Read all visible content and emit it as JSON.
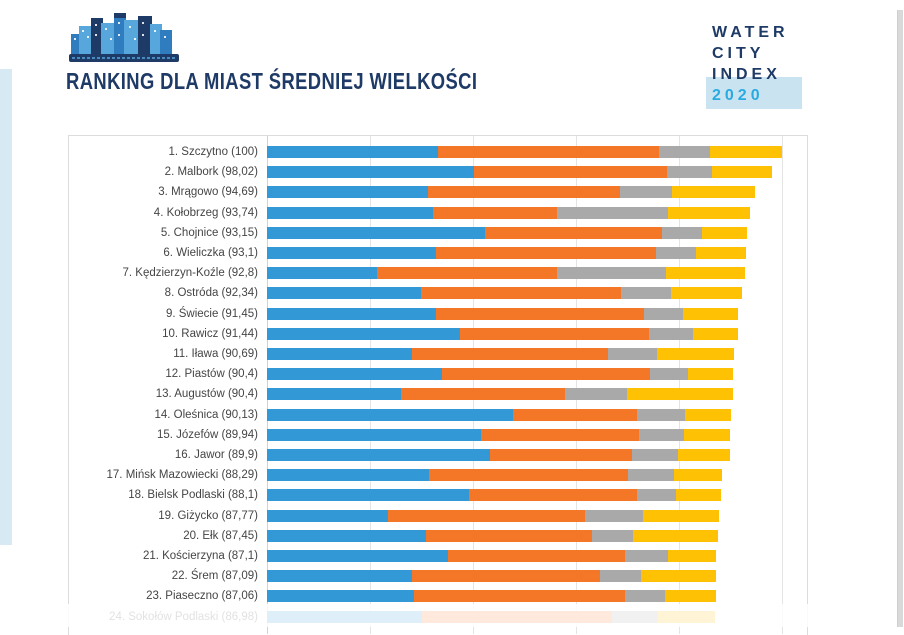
{
  "header": {
    "title": "RANKING DLA MIAST ŚREDNIEJ WIELKOŚCI",
    "brand": {
      "line1": "WATER",
      "line2": "CITY",
      "line3": "INDEX",
      "year": "2020"
    }
  },
  "colors": {
    "navy": "#1e3a66",
    "brand_cyan": "#29abe2",
    "brand_band": "#c9e3f1",
    "edge_accent": "#d7eaf3",
    "bar_blue": "#3399d6",
    "bar_orange": "#f47728",
    "bar_gray": "#a9a9a9",
    "bar_yellow": "#ffc103",
    "label_text": "#454545"
  },
  "chart_data": {
    "type": "bar",
    "orientation": "horizontal",
    "stacked": true,
    "title": "Ranking dla miast średniej wielkości",
    "xlabel": "",
    "ylabel": "",
    "x_axis": {
      "min": 0,
      "max": 100,
      "gridline_step": 20,
      "grid": true,
      "ticks_visible": false
    },
    "legend": "none",
    "segment_names": [
      "blue",
      "orange",
      "gray",
      "yellow"
    ],
    "segment_colors": [
      "#3399d6",
      "#f47728",
      "#a9a9a9",
      "#ffc103"
    ],
    "rows": [
      {
        "label": "1. Szczytno (100)",
        "score": 100,
        "segments": [
          33.2,
          43.0,
          9.9,
          13.9
        ]
      },
      {
        "label": "2. Malbork (98,02)",
        "score": 98.02,
        "segments": [
          40.2,
          37.4,
          8.9,
          11.5
        ]
      },
      {
        "label": "3. Mrągowo (94,69)",
        "score": 94.69,
        "segments": [
          31.3,
          37.2,
          10.1,
          16.1
        ]
      },
      {
        "label": "4. Kołobrzeg (93,74)",
        "score": 93.74,
        "segments": [
          32.2,
          24.2,
          21.5,
          15.8
        ]
      },
      {
        "label": "5. Chojnice (93,15)",
        "score": 93.15,
        "segments": [
          42.3,
          34.4,
          7.8,
          8.7
        ]
      },
      {
        "label": "6. Wieliczka (93,1)",
        "score": 93.1,
        "segments": [
          32.8,
          42.8,
          7.8,
          9.7
        ]
      },
      {
        "label": "7. Kędzierzyn-Koźle (92,8)",
        "score": 92.8,
        "segments": [
          21.4,
          34.9,
          21.2,
          15.3
        ]
      },
      {
        "label": "8. Ostróda (92,34)",
        "score": 92.34,
        "segments": [
          29.9,
          38.8,
          9.7,
          13.9
        ]
      },
      {
        "label": "9. Świecie (91,45)",
        "score": 91.45,
        "segments": [
          32.8,
          40.4,
          7.6,
          10.7
        ]
      },
      {
        "label": "10. Rawicz (91,44)",
        "score": 91.44,
        "segments": [
          37.5,
          36.6,
          8.7,
          8.6
        ]
      },
      {
        "label": "11. Iława (90,69)",
        "score": 90.69,
        "segments": [
          28.2,
          38.0,
          9.5,
          15.0
        ]
      },
      {
        "label": "12. Piastów (90,4)",
        "score": 90.4,
        "segments": [
          34.0,
          40.3,
          7.4,
          8.7
        ]
      },
      {
        "label": "13. Augustów (90,4)",
        "score": 90.4,
        "segments": [
          26.0,
          31.8,
          12.2,
          20.4
        ]
      },
      {
        "label": "14. Oleśnica (90,13)",
        "score": 90.13,
        "segments": [
          47.8,
          24.1,
          9.3,
          8.9
        ]
      },
      {
        "label": "15. Józefów (89,94)",
        "score": 89.94,
        "segments": [
          41.5,
          30.8,
          8.7,
          8.9
        ]
      },
      {
        "label": "16. Jawor (89,9)",
        "score": 89.9,
        "segments": [
          43.3,
          27.6,
          8.9,
          10.1
        ]
      },
      {
        "label": "17. Mińsk Mazowiecki (88,29)",
        "score": 88.29,
        "segments": [
          31.4,
          38.7,
          8.9,
          9.3
        ]
      },
      {
        "label": "18. Bielsk Podlaski (88,1)",
        "score": 88.1,
        "segments": [
          39.2,
          32.6,
          7.6,
          8.7
        ]
      },
      {
        "label": "19. Giżycko (87,77)",
        "score": 87.77,
        "segments": [
          23.5,
          38.2,
          11.3,
          14.8
        ]
      },
      {
        "label": "20. Ełk (87,45)",
        "score": 87.45,
        "segments": [
          30.9,
          32.3,
          7.8,
          16.5
        ]
      },
      {
        "label": "21. Kościerzyna (87,1)",
        "score": 87.1,
        "segments": [
          35.1,
          34.4,
          8.3,
          9.3
        ]
      },
      {
        "label": "22. Śrem (87,09)",
        "score": 87.09,
        "segments": [
          28.2,
          36.4,
          8.1,
          14.4
        ]
      },
      {
        "label": "23. Piaseczno (87,06)",
        "score": 87.06,
        "segments": [
          28.6,
          41.0,
          7.6,
          9.9
        ]
      },
      {
        "label": "24. Sokołów Podlaski (86,98)",
        "score": 86.98,
        "segments": [
          30.0,
          37.0,
          9.0,
          11.0
        ],
        "partially_visible": true
      }
    ]
  }
}
